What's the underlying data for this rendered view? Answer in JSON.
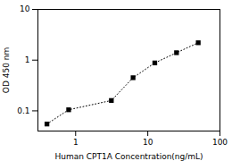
{
  "chart_data": {
    "type": "line",
    "x": [
      0.4,
      0.8,
      3.125,
      6.25,
      12.5,
      25,
      50
    ],
    "values": [
      0.055,
      0.105,
      0.16,
      0.45,
      0.88,
      1.4,
      2.2
    ],
    "xlabel": "Human CPT1A Concentration(ng/mL)",
    "ylabel": "OD 450 nm",
    "xlim": [
      0.3,
      100
    ],
    "ylim": [
      0.04,
      10
    ],
    "xticks": [
      1,
      10,
      100
    ],
    "yticks": [
      0.1,
      1,
      10
    ],
    "log": true,
    "grid": false,
    "marker": "square",
    "line_style": "dotted"
  }
}
